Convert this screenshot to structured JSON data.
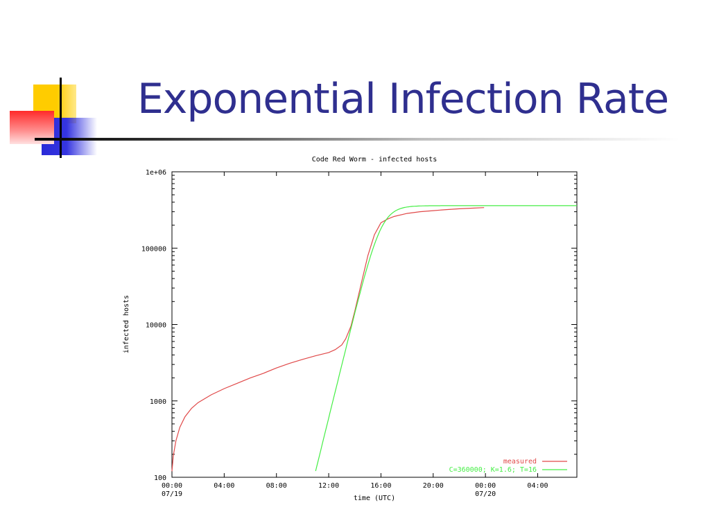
{
  "slide": {
    "title": "Exponential Infection Rate"
  },
  "colors": {
    "title": "#2f2f8f",
    "measured": "#e04848",
    "model": "#44ee44"
  },
  "chart_data": {
    "type": "line",
    "title": "Code Red Worm - infected hosts",
    "xlabel": "time (UTC)",
    "ylabel": "infected hosts",
    "yscale": "log",
    "ylim": [
      100,
      1000000
    ],
    "xlim_hours": [
      0,
      31
    ],
    "grid": false,
    "legend_position": "bottom-right",
    "x_ticks": [
      {
        "hour": 0,
        "label": "00:00",
        "sublabel": "07/19"
      },
      {
        "hour": 4,
        "label": "04:00",
        "sublabel": ""
      },
      {
        "hour": 8,
        "label": "08:00",
        "sublabel": ""
      },
      {
        "hour": 12,
        "label": "12:00",
        "sublabel": ""
      },
      {
        "hour": 16,
        "label": "16:00",
        "sublabel": ""
      },
      {
        "hour": 20,
        "label": "20:00",
        "sublabel": ""
      },
      {
        "hour": 24,
        "label": "00:00",
        "sublabel": "07/20"
      },
      {
        "hour": 28,
        "label": "04:00",
        "sublabel": ""
      }
    ],
    "y_ticks": [
      {
        "value": 100,
        "label": "100"
      },
      {
        "value": 1000,
        "label": "1000"
      },
      {
        "value": 10000,
        "label": "10000"
      },
      {
        "value": 100000,
        "label": "100000"
      },
      {
        "value": 1000000,
        "label": "1e+06"
      }
    ],
    "series": [
      {
        "name": "measured",
        "color": "#e04848",
        "x_hours": [
          0,
          0.1,
          0.3,
          0.6,
          1,
          1.5,
          2,
          3,
          4,
          5,
          6,
          7,
          8,
          9,
          10,
          11,
          12,
          12.5,
          13,
          13.3,
          13.7,
          14,
          14.5,
          15,
          15.5,
          16,
          16.5,
          17,
          18,
          19,
          20,
          21,
          22,
          23,
          23.9
        ],
        "y": [
          120,
          190,
          300,
          450,
          620,
          800,
          950,
          1200,
          1450,
          1700,
          2000,
          2300,
          2700,
          3100,
          3500,
          3900,
          4300,
          4700,
          5400,
          6500,
          9500,
          15000,
          35000,
          80000,
          150000,
          215000,
          240000,
          260000,
          285000,
          300000,
          310000,
          320000,
          328000,
          334000,
          340000
        ]
      },
      {
        "name": "C=360000; K=1.6; T=16",
        "color": "#44ee44",
        "model": {
          "C": 360000,
          "K": 1.6,
          "T": 16,
          "x_start_hours": 11,
          "x_end_hours": 31
        }
      }
    ]
  }
}
